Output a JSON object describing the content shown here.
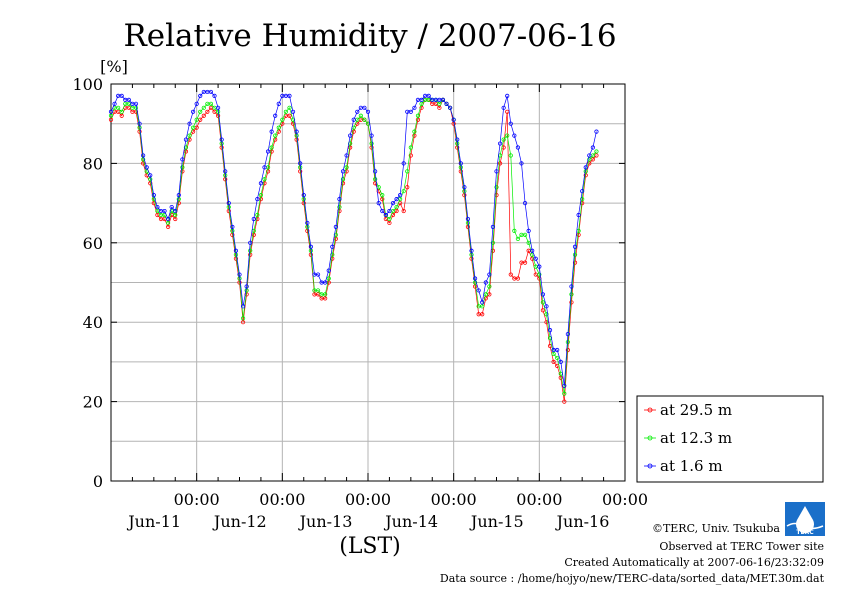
{
  "chart_data": {
    "type": "line",
    "title": "Relative Humidity / 2007-06-16",
    "ylabel": "[%]",
    "xlabel": "(LST)",
    "ylim": [
      0,
      100
    ],
    "xlim": [
      0,
      144
    ],
    "x_unit": "hours since Jun-10 12:00 LST",
    "y_ticks": [
      0,
      20,
      40,
      60,
      80,
      100
    ],
    "x_ticks": [
      {
        "x": 24,
        "time": "00:00",
        "date": "Jun-11"
      },
      {
        "x": 48,
        "time": "00:00",
        "date": "Jun-12"
      },
      {
        "x": 72,
        "time": "00:00",
        "date": "Jun-13"
      },
      {
        "x": 96,
        "time": "00:00",
        "date": "Jun-14"
      },
      {
        "x": 120,
        "time": "00:00",
        "date": "Jun-15"
      },
      {
        "x": 144,
        "time": "00:00",
        "date": "Jun-16"
      }
    ],
    "grid": true,
    "legend_position": "right-bottom",
    "x_step": 1,
    "series": [
      {
        "name": "at 29.5 m",
        "color": "#ff0000",
        "values": [
          91,
          93,
          93,
          92,
          94,
          94,
          93,
          93,
          88,
          80,
          77,
          75,
          70,
          67,
          66,
          66,
          64,
          67,
          66,
          70,
          78,
          83,
          86,
          88,
          89,
          91,
          92,
          93,
          94,
          93,
          92,
          84,
          76,
          68,
          62,
          56,
          50,
          40,
          47,
          57,
          62,
          66,
          71,
          75,
          78,
          83,
          86,
          88,
          90,
          92,
          92,
          90,
          86,
          78,
          70,
          63,
          57,
          47,
          47,
          46,
          46,
          50,
          56,
          61,
          68,
          75,
          78,
          84,
          88,
          90,
          91,
          91,
          90,
          84,
          75,
          73,
          71,
          66,
          65,
          67,
          68,
          70,
          68,
          74,
          82,
          87,
          91,
          94,
          96,
          96,
          95,
          95,
          94,
          96,
          95,
          94,
          90,
          84,
          78,
          72,
          64,
          56,
          49,
          42,
          42,
          46,
          47,
          58,
          72,
          80,
          84,
          93,
          52,
          51,
          51,
          55,
          55,
          58,
          56,
          52,
          51,
          43,
          40,
          34,
          30,
          29,
          26,
          20,
          33,
          45,
          55,
          62,
          70,
          77,
          80,
          81,
          82
        ]
      },
      {
        "name": "at 12.3 m",
        "color": "#00ee00",
        "values": [
          92,
          94,
          94,
          93,
          95,
          95,
          94,
          94,
          89,
          81,
          78,
          76,
          71,
          68,
          67,
          67,
          65,
          68,
          67,
          71,
          79,
          84,
          87,
          89,
          91,
          93,
          94,
          95,
          95,
          94,
          93,
          85,
          77,
          69,
          63,
          57,
          51,
          41,
          48,
          58,
          63,
          67,
          72,
          76,
          79,
          84,
          87,
          89,
          91,
          93,
          94,
          91,
          87,
          79,
          71,
          64,
          58,
          48,
          48,
          47,
          47,
          51,
          57,
          62,
          69,
          76,
          79,
          85,
          89,
          91,
          92,
          91,
          90,
          85,
          76,
          74,
          72,
          67,
          66,
          68,
          69,
          71,
          73,
          78,
          84,
          88,
          92,
          95,
          96,
          96,
          96,
          96,
          95,
          96,
          95,
          94,
          91,
          85,
          79,
          73,
          65,
          57,
          50,
          44,
          44,
          47,
          49,
          60,
          74,
          82,
          86,
          87,
          82,
          63,
          61,
          62,
          62,
          60,
          57,
          54,
          52,
          45,
          42,
          36,
          32,
          31,
          27,
          22,
          35,
          47,
          57,
          63,
          71,
          78,
          81,
          82,
          83
        ]
      },
      {
        "name": "at 1.6 m",
        "color": "#0000ff",
        "values": [
          93,
          95,
          97,
          97,
          96,
          96,
          95,
          95,
          90,
          82,
          79,
          77,
          72,
          69,
          68,
          68,
          66,
          69,
          68,
          72,
          81,
          86,
          90,
          93,
          95,
          97,
          98,
          98,
          98,
          97,
          94,
          86,
          78,
          70,
          64,
          58,
          52,
          44,
          49,
          60,
          66,
          71,
          75,
          79,
          83,
          88,
          92,
          95,
          97,
          97,
          97,
          93,
          88,
          80,
          72,
          65,
          59,
          52,
          52,
          50,
          50,
          53,
          59,
          64,
          71,
          78,
          82,
          87,
          91,
          93,
          94,
          94,
          93,
          87,
          78,
          70,
          68,
          67,
          68,
          70,
          71,
          72,
          80,
          93,
          93,
          94,
          96,
          96,
          97,
          97,
          96,
          96,
          96,
          96,
          95,
          94,
          91,
          86,
          80,
          74,
          66,
          58,
          51,
          48,
          45,
          50,
          52,
          64,
          78,
          85,
          94,
          97,
          90,
          87,
          84,
          80,
          70,
          63,
          58,
          56,
          54,
          47,
          44,
          38,
          33,
          33,
          30,
          24,
          37,
          49,
          59,
          67,
          73,
          79,
          82,
          84,
          88
        ]
      }
    ]
  },
  "credits": {
    "copyright": "©TERC, Univ. Tsukuba",
    "observed": "Observed at TERC Tower site",
    "created": "Created Automatically at 2007-06-16/23:32:09",
    "source": "Data source : /home/hojyo/new/TERC-data/sorted_data/MET.30m.dat",
    "logo_text": "TERC"
  }
}
